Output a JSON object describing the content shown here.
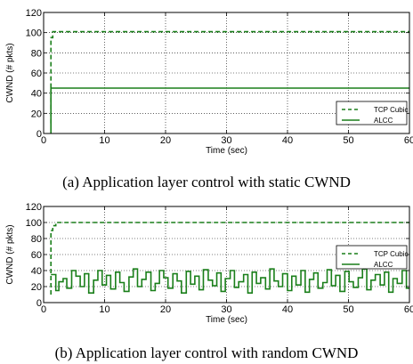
{
  "colors": {
    "series": "#1a7f1a",
    "grid": "#000000"
  },
  "chart_data": [
    {
      "type": "line",
      "ylabel": "CWND (# pkts)",
      "xlabel": "Time (sec)",
      "xlim": [
        0,
        60
      ],
      "ylim": [
        0,
        120
      ],
      "xticks": [
        0,
        10,
        20,
        30,
        40,
        50,
        60
      ],
      "yticks": [
        0,
        20,
        40,
        60,
        80,
        100,
        120
      ],
      "grid": true,
      "legend_position": "bottom-right",
      "caption": "(a) Application layer control with static CWND",
      "series": [
        {
          "name": "TCP Cubic",
          "style": "dashed",
          "x": [
            1.2,
            1.2,
            1.5,
            1.5,
            60
          ],
          "y": [
            10,
            95,
            95,
            101,
            101
          ]
        },
        {
          "name": "ALCC",
          "style": "solid",
          "x": [
            1.2,
            1.2,
            60
          ],
          "y": [
            0,
            45,
            45
          ]
        }
      ]
    },
    {
      "type": "line",
      "ylabel": "CWND (# pkts)",
      "xlabel": "Time (sec)",
      "xlim": [
        0,
        60
      ],
      "ylim": [
        0,
        120
      ],
      "xticks": [
        0,
        10,
        20,
        30,
        40,
        50,
        60
      ],
      "yticks": [
        0,
        20,
        40,
        60,
        80,
        100,
        120
      ],
      "grid": true,
      "legend_position": "center-right",
      "caption": "(b) Application layer control with random CWND",
      "series": [
        {
          "name": "TCP Cubic",
          "style": "dashed",
          "x": [
            1.2,
            1.2,
            1.5,
            1.5,
            2.0,
            2.0,
            60
          ],
          "y": [
            10,
            90,
            90,
            96,
            96,
            100,
            100
          ]
        },
        {
          "name": "ALCC",
          "style": "steps",
          "x": [
            1.2,
            2.0,
            2.5,
            3.2,
            3.8,
            4.6,
            5.3,
            6.0,
            6.7,
            7.4,
            8.2,
            8.9,
            9.6,
            10.3,
            11.0,
            11.8,
            12.5,
            13.2,
            14.0,
            14.7,
            15.4,
            16.1,
            16.8,
            17.6,
            18.3,
            19.0,
            19.7,
            20.4,
            21.2,
            21.9,
            22.6,
            23.4,
            24.1,
            24.8,
            25.5,
            26.2,
            27.0,
            27.7,
            28.4,
            29.1,
            29.8,
            30.6,
            31.3,
            32.0,
            32.8,
            33.5,
            34.2,
            34.9,
            35.6,
            36.4,
            37.1,
            37.8,
            38.5,
            39.2,
            40.0,
            40.7,
            41.4,
            42.2,
            42.9,
            43.6,
            44.3,
            45.0,
            45.8,
            46.5,
            47.2,
            47.9,
            48.6,
            49.4,
            50.1,
            50.8,
            51.6,
            52.3,
            53.0,
            53.7,
            54.4,
            55.2,
            55.9,
            56.6,
            57.3,
            58.0,
            58.8,
            59.5,
            60
          ],
          "y": [
            35,
            15,
            26,
            30,
            18,
            40,
            33,
            20,
            36,
            12,
            28,
            40,
            22,
            34,
            17,
            38,
            25,
            14,
            32,
            42,
            20,
            29,
            38,
            15,
            24,
            40,
            31,
            18,
            36,
            27,
            12,
            39,
            23,
            33,
            16,
            41,
            28,
            21,
            37,
            14,
            30,
            40,
            19,
            26,
            35,
            12,
            38,
            24,
            31,
            17,
            42,
            27,
            20,
            36,
            15,
            33,
            22,
            40,
            13,
            29,
            37,
            18,
            25,
            41,
            21,
            34,
            14,
            39,
            26,
            19,
            31,
            42,
            16,
            28,
            35,
            22,
            38,
            13,
            30,
            24,
            40,
            18,
            18
          ]
        }
      ]
    }
  ]
}
